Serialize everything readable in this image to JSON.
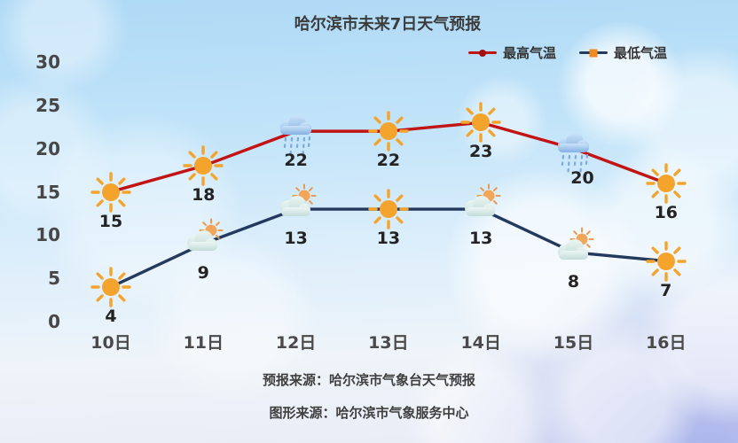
{
  "title": "哈尔滨市未来7日天气预报",
  "footer": {
    "line1": "预报来源：哈尔滨市气象台天气预报",
    "line2": "图形来源：哈尔滨市气象服务中心"
  },
  "colors": {
    "high_line": "#c11414",
    "low_line": "#24395e",
    "high_marker": "#a30f0f",
    "low_marker": "#ef8b1e",
    "sun": "#f4a42c",
    "text": "#3c3c3c"
  },
  "chart_data": {
    "type": "line",
    "title": "哈尔滨市未来7日天气预报",
    "categories": [
      "10日",
      "11日",
      "12日",
      "13日",
      "14日",
      "15日",
      "16日"
    ],
    "series": [
      {
        "name": "最高气温",
        "color": "#c11414",
        "values": [
          15,
          18,
          22,
          22,
          23,
          20,
          16
        ],
        "icons": [
          "sunny",
          "sunny",
          "rain",
          "sunny",
          "sunny",
          "rain",
          "sunny"
        ]
      },
      {
        "name": "最低气温",
        "color": "#24395e",
        "values": [
          4,
          9,
          13,
          13,
          13,
          8,
          7
        ],
        "icons": [
          "sunny",
          "partly-cloudy",
          "partly-cloudy",
          "sunny",
          "partly-cloudy",
          "partly-cloudy",
          "sunny"
        ]
      }
    ],
    "yticks": [
      0,
      5,
      10,
      15,
      20,
      25,
      30
    ],
    "ylim": [
      0,
      30
    ],
    "grid": false,
    "legend_position": "top-right",
    "xlabel": "",
    "ylabel": ""
  }
}
